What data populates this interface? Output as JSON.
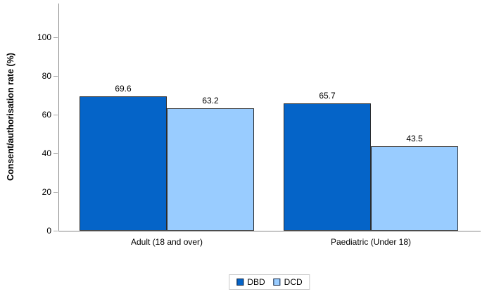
{
  "chart_data": {
    "type": "bar",
    "title": "",
    "xlabel": "",
    "ylabel": "Consent/authorisation rate (%)",
    "categories": [
      "Adult (18 and over)",
      "Paediatric (Under 18)"
    ],
    "series": [
      {
        "name": "DBD",
        "color": "#0564C8",
        "values": [
          69.6,
          65.7
        ]
      },
      {
        "name": "DCD",
        "color": "#99CCFF",
        "values": [
          63.2,
          43.5
        ]
      }
    ],
    "bar_labels": [
      [
        "69.6",
        "65.7"
      ],
      [
        "63.2",
        "43.5"
      ]
    ],
    "ylim": [
      0,
      100
    ],
    "yticks": [
      0,
      20,
      40,
      60,
      80,
      100
    ],
    "grid": false,
    "legend_position": "bottom-center",
    "bar_border_color": "#2b2b2b",
    "axis_color": "#8c8c8c",
    "baseline_color": "#c6c6c6"
  }
}
